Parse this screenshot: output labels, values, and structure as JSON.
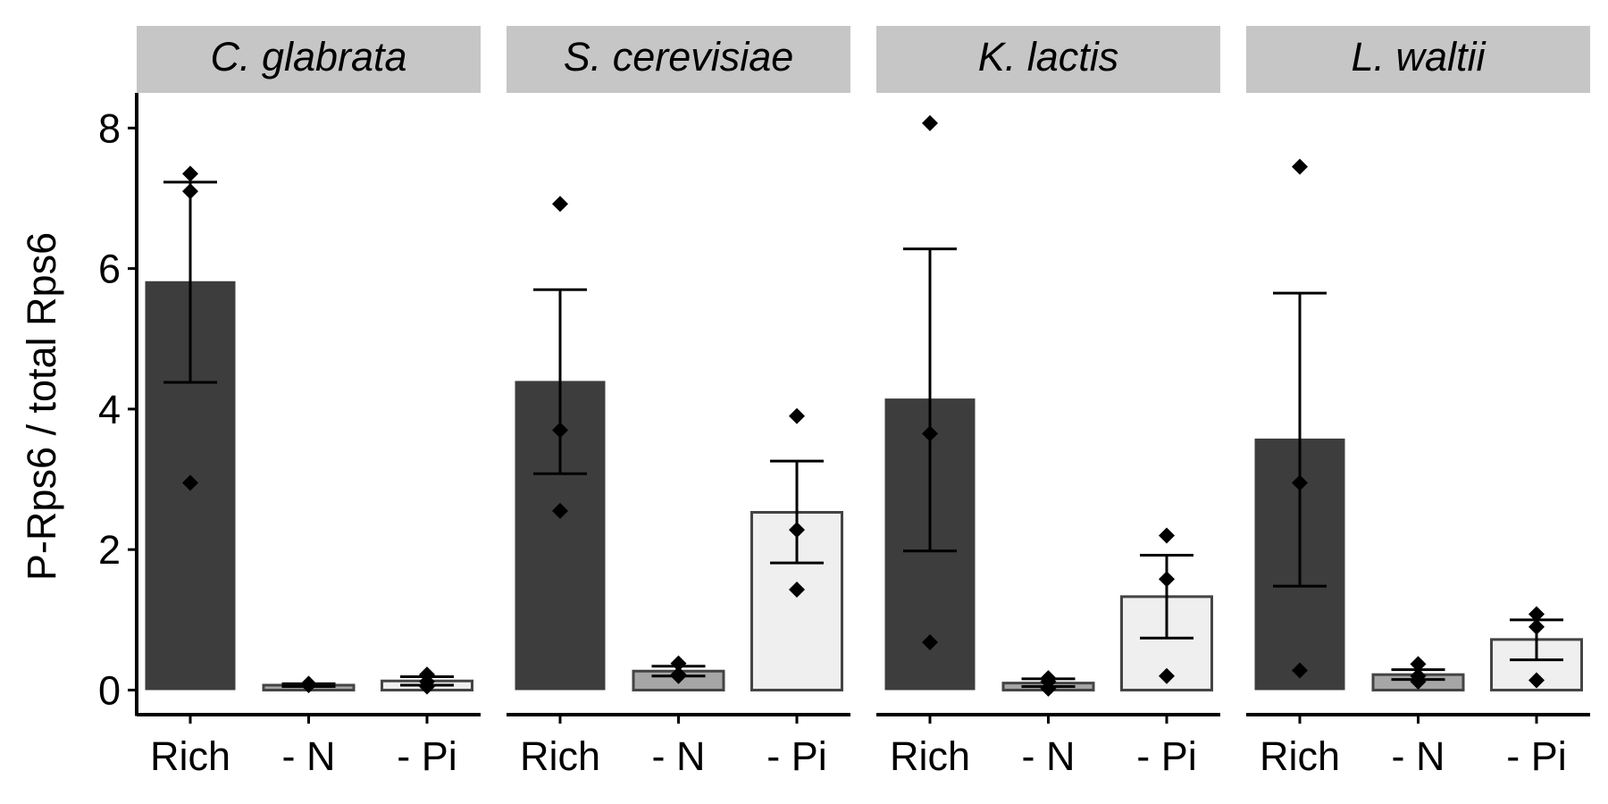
{
  "chart_data": {
    "type": "bar",
    "ylabel": "P-Rps6 / total Rps6",
    "xlabel": "",
    "ylim": [
      -0.35,
      8.5
    ],
    "yticks": [
      0,
      2,
      4,
      6,
      8
    ],
    "categories": [
      "Rich",
      "- N",
      "- Pi"
    ],
    "category_colors": [
      "#3d3d3d",
      "#a6a6a6",
      "#efefef"
    ],
    "point_color": "#000000",
    "strip_color": "#c6c6c6",
    "error_bars": "mean ± SE",
    "grid": false,
    "legend": "none",
    "panels": [
      {
        "name": "C. glabrata",
        "means": [
          5.82,
          0.07,
          0.13
        ],
        "errors": [
          [
            4.38,
            7.23
          ],
          [
            0.05,
            0.09
          ],
          [
            0.07,
            0.19
          ]
        ],
        "points": [
          [
            7.35,
            7.1,
            2.95
          ],
          [
            0.08,
            0.09,
            0.07
          ],
          [
            0.22,
            0.12,
            0.05
          ]
        ]
      },
      {
        "name": "S. cerevisiae",
        "means": [
          4.4,
          0.27,
          2.53
        ],
        "errors": [
          [
            3.08,
            5.7
          ],
          [
            0.2,
            0.34
          ],
          [
            1.81,
            3.26
          ]
        ],
        "points": [
          [
            6.92,
            3.7,
            2.55
          ],
          [
            0.38,
            0.2,
            0.22
          ],
          [
            3.9,
            2.28,
            1.43
          ]
        ]
      },
      {
        "name": "K. lactis",
        "means": [
          4.15,
          0.1,
          1.33
        ],
        "errors": [
          [
            1.98,
            6.28
          ],
          [
            0.05,
            0.16
          ],
          [
            0.74,
            1.92
          ]
        ],
        "points": [
          [
            8.07,
            3.65,
            0.68
          ],
          [
            0.17,
            0.12,
            0.02
          ],
          [
            2.2,
            1.58,
            0.2
          ]
        ]
      },
      {
        "name": "L. waltii",
        "means": [
          3.58,
          0.22,
          0.72
        ],
        "errors": [
          [
            1.48,
            5.65
          ],
          [
            0.15,
            0.29
          ],
          [
            0.43,
            1.0
          ]
        ],
        "points": [
          [
            7.45,
            2.95,
            0.28
          ],
          [
            0.37,
            0.2,
            0.12
          ],
          [
            1.08,
            0.9,
            0.14
          ]
        ]
      }
    ]
  }
}
